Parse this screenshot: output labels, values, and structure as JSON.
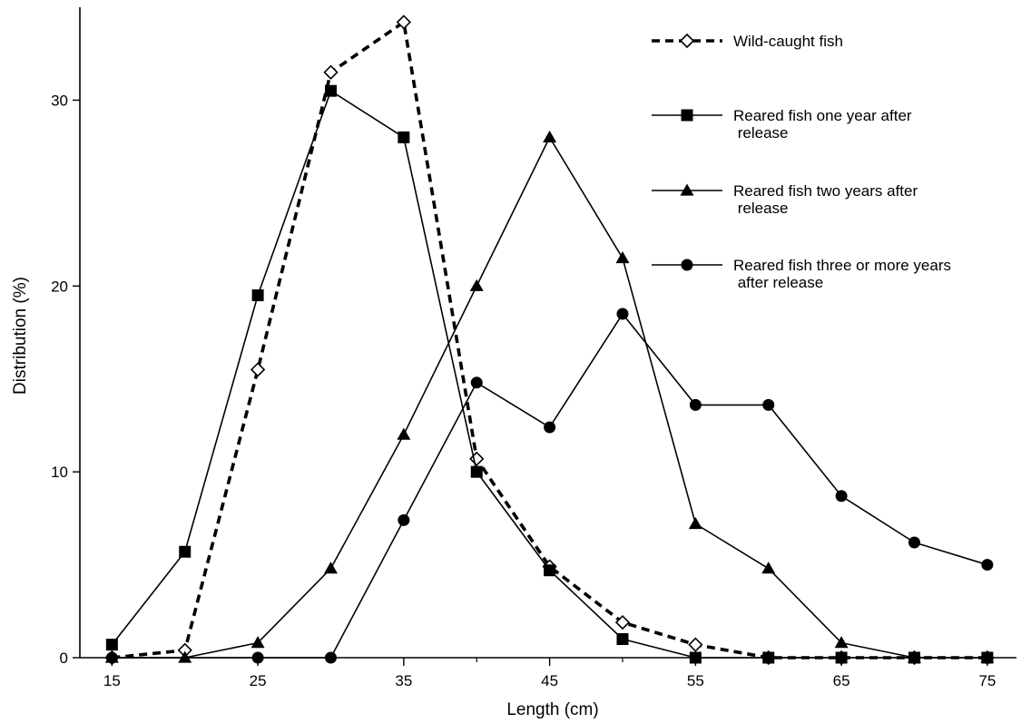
{
  "chart_data": {
    "type": "line",
    "title": "",
    "xlabel": "Length (cm)",
    "ylabel": "Distribution (%)",
    "xlim": [
      12.8,
      77
    ],
    "ylim": [
      0,
      35
    ],
    "x_ticks_labeled": [
      15,
      25,
      35,
      45,
      55,
      65,
      75
    ],
    "x_ticks_minor": [
      20,
      30,
      40,
      50,
      60,
      70
    ],
    "y_ticks": [
      0,
      10,
      20,
      30
    ],
    "grid": false,
    "legend_position": "top-right",
    "series": [
      {
        "name": "Wild-caught fish",
        "style": "dashed",
        "marker": "open-diamond",
        "x": [
          15,
          20,
          25,
          30,
          35,
          40,
          45,
          50,
          55,
          60,
          65,
          70,
          75
        ],
        "y": [
          0,
          0.4,
          15.5,
          31.5,
          34.2,
          10.7,
          4.9,
          1.9,
          0.7,
          0,
          0,
          0,
          0
        ]
      },
      {
        "name": "Reared fish one year after\n   release",
        "style": "solid",
        "marker": "filled-square",
        "x": [
          15,
          20,
          25,
          30,
          35,
          40,
          45,
          50,
          55,
          60,
          65,
          70,
          75
        ],
        "y": [
          0.7,
          5.7,
          19.5,
          30.5,
          28,
          10,
          4.7,
          1,
          0,
          0,
          0,
          0,
          0
        ]
      },
      {
        "name": "Reared fish two years after\n   release",
        "style": "solid",
        "marker": "filled-triangle",
        "x": [
          15,
          20,
          25,
          30,
          35,
          40,
          45,
          50,
          55,
          60,
          65,
          70,
          75
        ],
        "y": [
          0,
          0,
          0.8,
          4.8,
          12,
          20,
          28,
          21.5,
          7.2,
          4.8,
          0.8,
          0,
          0
        ]
      },
      {
        "name": "Reared fish three or more years\n   after release",
        "style": "solid",
        "marker": "filled-circle",
        "x": [
          15,
          25,
          30,
          35,
          40,
          45,
          50,
          55,
          60,
          65,
          70,
          75
        ],
        "y": [
          0,
          0,
          0,
          7.4,
          14.8,
          12.4,
          18.5,
          13.6,
          13.6,
          8.7,
          6.2,
          5
        ]
      }
    ]
  }
}
